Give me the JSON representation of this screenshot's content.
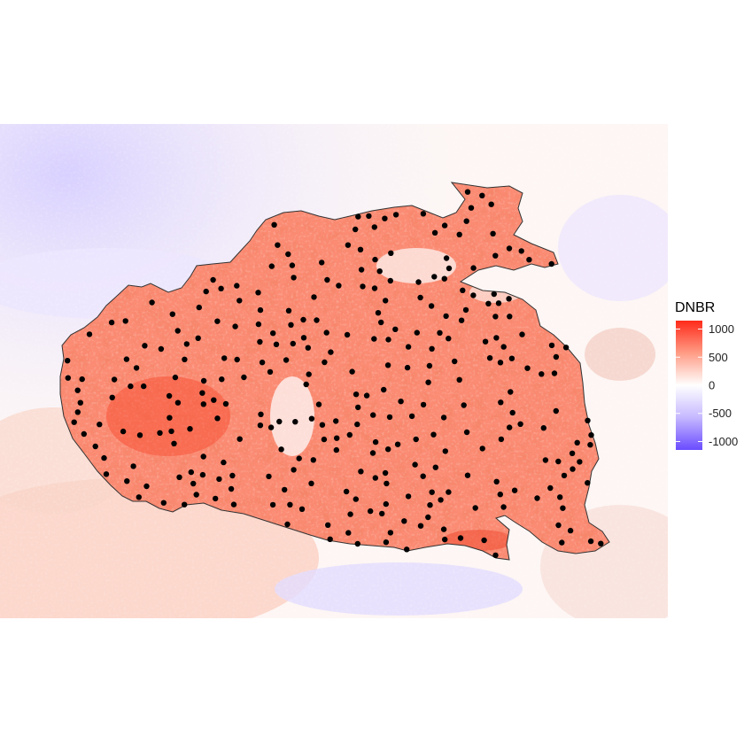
{
  "legend": {
    "title": "DNBR",
    "ticks": [
      {
        "value": 1000,
        "label": "1000"
      },
      {
        "value": 500,
        "label": "500"
      },
      {
        "value": 0,
        "label": "0"
      },
      {
        "value": -500,
        "label": "-500"
      },
      {
        "value": -1000,
        "label": "-1000"
      }
    ],
    "range": [
      -1150,
      1150
    ],
    "colors": {
      "low": "#6a4cff",
      "mid": "#ffffff",
      "high": "#ff2a1a"
    }
  },
  "map": {
    "plot_points_count": 300,
    "point_color": "#000000",
    "boundary_color": "#333333"
  }
}
